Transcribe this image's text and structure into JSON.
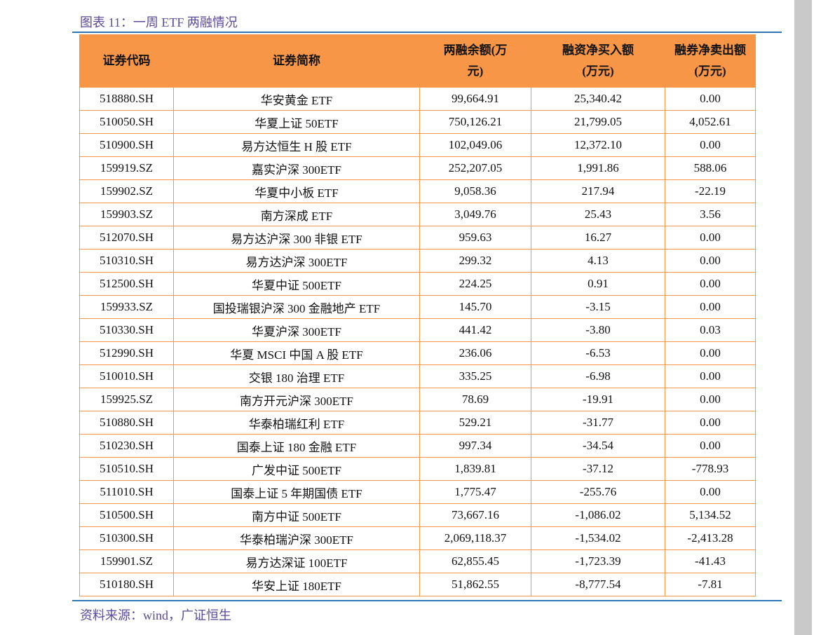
{
  "header": {
    "title": "图表 11：一周 ETF 两融情况"
  },
  "table": {
    "columns": [
      "证券代码",
      "证券简称",
      "两融余额(万元)",
      "融资净买入额(万元)",
      "融券净卖出额(万元)"
    ],
    "rows": [
      [
        "518880.SH",
        "华安黄金 ETF",
        "99,664.91",
        "25,340.42",
        "0.00"
      ],
      [
        "510050.SH",
        "华夏上证 50ETF",
        "750,126.21",
        "21,799.05",
        "4,052.61"
      ],
      [
        "510900.SH",
        "易方达恒生 H 股 ETF",
        "102,049.06",
        "12,372.10",
        "0.00"
      ],
      [
        "159919.SZ",
        "嘉实沪深 300ETF",
        "252,207.05",
        "1,991.86",
        "588.06"
      ],
      [
        "159902.SZ",
        "华夏中小板 ETF",
        "9,058.36",
        "217.94",
        "-22.19"
      ],
      [
        "159903.SZ",
        "南方深成 ETF",
        "3,049.76",
        "25.43",
        "3.56"
      ],
      [
        "512070.SH",
        "易方达沪深 300 非银 ETF",
        "959.63",
        "16.27",
        "0.00"
      ],
      [
        "510310.SH",
        "易方达沪深 300ETF",
        "299.32",
        "4.13",
        "0.00"
      ],
      [
        "512500.SH",
        "华夏中证 500ETF",
        "224.25",
        "0.91",
        "0.00"
      ],
      [
        "159933.SZ",
        "国投瑞银沪深 300 金融地产 ETF",
        "145.70",
        "-3.15",
        "0.00"
      ],
      [
        "510330.SH",
        "华夏沪深 300ETF",
        "441.42",
        "-3.80",
        "0.03"
      ],
      [
        "512990.SH",
        "华夏 MSCI 中国 A 股 ETF",
        "236.06",
        "-6.53",
        "0.00"
      ],
      [
        "510010.SH",
        "交银 180 治理 ETF",
        "335.25",
        "-6.98",
        "0.00"
      ],
      [
        "159925.SZ",
        "南方开元沪深 300ETF",
        "78.69",
        "-19.91",
        "0.00"
      ],
      [
        "510880.SH",
        "华泰柏瑞红利 ETF",
        "529.21",
        "-31.77",
        "0.00"
      ],
      [
        "510230.SH",
        "国泰上证 180 金融 ETF",
        "997.34",
        "-34.54",
        "0.00"
      ],
      [
        "510510.SH",
        "广发中证 500ETF",
        "1,839.81",
        "-37.12",
        "-778.93"
      ],
      [
        "511010.SH",
        "国泰上证 5 年期国债 ETF",
        "1,775.47",
        "-255.76",
        "0.00"
      ],
      [
        "510500.SH",
        "南方中证 500ETF",
        "73,667.16",
        "-1,086.02",
        "5,134.52"
      ],
      [
        "510300.SH",
        "华泰柏瑞沪深 300ETF",
        "2,069,118.37",
        "-1,534.02",
        "-2,413.28"
      ],
      [
        "159901.SZ",
        "易方达深证 100ETF",
        "62,855.45",
        "-1,723.39",
        "-41.43"
      ],
      [
        "510180.SH",
        "华安上证 180ETF",
        "51,862.55",
        "-8,777.54",
        "-7.81"
      ]
    ]
  },
  "footer": {
    "source": "资料来源：wind，广证恒生"
  }
}
